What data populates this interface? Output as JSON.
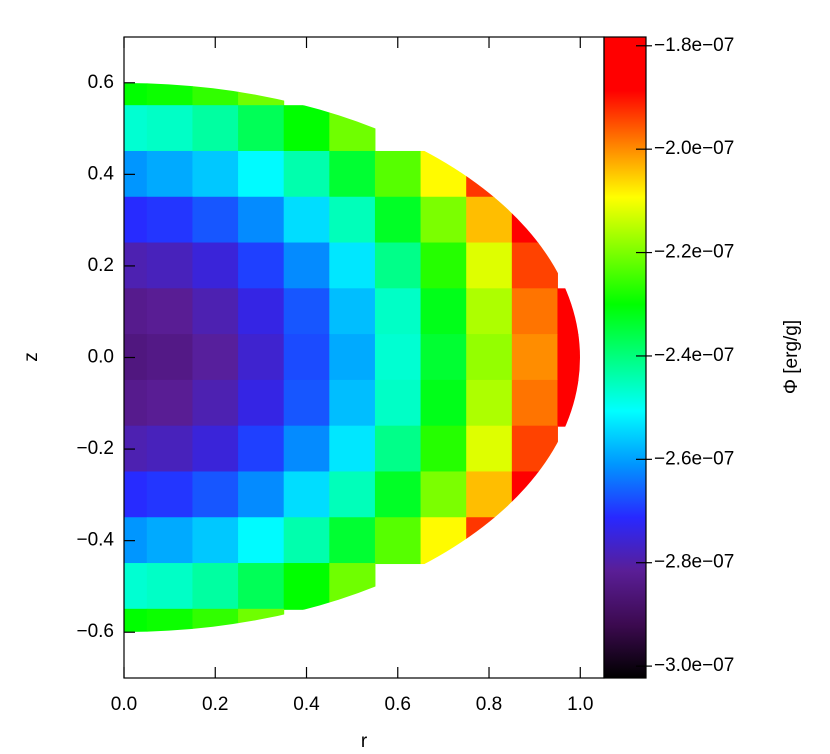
{
  "chart_data": {
    "type": "heatmap",
    "x_label": "r",
    "y_label": "z",
    "colorbar_label": "Φ [erg/g]",
    "x": [
      0,
      0.1,
      0.2,
      0.3,
      0.4,
      0.5,
      0.6,
      0.7,
      0.8,
      0.9,
      1.0
    ],
    "y": [
      0.6,
      0.5,
      0.4,
      0.3,
      0.2,
      0.1,
      0,
      -0.1,
      -0.2,
      -0.3,
      -0.4,
      -0.5,
      -0.6
    ],
    "values": [
      [
        -2.3e-07,
        -2.29e-07,
        -2.26e-07,
        -2.21e-07,
        null,
        null,
        null,
        null,
        null,
        null,
        null
      ],
      [
        -2.47e-07,
        -2.46e-07,
        -2.43e-07,
        -2.37e-07,
        -2.3e-07,
        -2.21e-07,
        null,
        null,
        null,
        null,
        null
      ],
      [
        -2.61e-07,
        -2.59e-07,
        -2.56e-07,
        -2.51e-07,
        -2.44e-07,
        -2.34e-07,
        -2.23e-07,
        -2.09e-07,
        -1.93e-07,
        null,
        null
      ],
      [
        -2.71e-07,
        -2.7e-07,
        -2.67e-07,
        -2.62e-07,
        -2.54e-07,
        -2.45e-07,
        -2.33e-07,
        -2.2e-07,
        -2.04e-07,
        -1.86e-07,
        null
      ],
      [
        -2.79e-07,
        -2.78e-07,
        -2.75e-07,
        -2.69e-07,
        -2.62e-07,
        -2.53e-07,
        -2.41e-07,
        -2.27e-07,
        -2.12e-07,
        -1.94e-07,
        null
      ],
      [
        -2.83e-07,
        -2.82e-07,
        -2.79e-07,
        -2.74e-07,
        -2.67e-07,
        -2.57e-07,
        -2.46e-07,
        -2.32e-07,
        -2.16e-07,
        -1.98e-07,
        -1.78e-07
      ],
      [
        -2.85e-07,
        -2.84e-07,
        -2.81e-07,
        -2.76e-07,
        -2.68e-07,
        -2.59e-07,
        -2.47e-07,
        -2.34e-07,
        -2.18e-07,
        -2e-07,
        -1.8e-07
      ],
      [
        -2.83e-07,
        -2.82e-07,
        -2.79e-07,
        -2.74e-07,
        -2.67e-07,
        -2.57e-07,
        -2.46e-07,
        -2.32e-07,
        -2.16e-07,
        -1.98e-07,
        -1.78e-07
      ],
      [
        -2.79e-07,
        -2.78e-07,
        -2.75e-07,
        -2.69e-07,
        -2.62e-07,
        -2.53e-07,
        -2.41e-07,
        -2.27e-07,
        -2.12e-07,
        -1.94e-07,
        null
      ],
      [
        -2.71e-07,
        -2.7e-07,
        -2.67e-07,
        -2.62e-07,
        -2.54e-07,
        -2.45e-07,
        -2.33e-07,
        -2.2e-07,
        -2.04e-07,
        -1.86e-07,
        null
      ],
      [
        -2.61e-07,
        -2.59e-07,
        -2.56e-07,
        -2.51e-07,
        -2.44e-07,
        -2.34e-07,
        -2.23e-07,
        -2.09e-07,
        -1.93e-07,
        null,
        null
      ],
      [
        -2.47e-07,
        -2.46e-07,
        -2.43e-07,
        -2.37e-07,
        -2.3e-07,
        -2.21e-07,
        null,
        null,
        null,
        null,
        null
      ],
      [
        -2.3e-07,
        -2.29e-07,
        -2.26e-07,
        -2.21e-07,
        null,
        null,
        null,
        null,
        null,
        null,
        null
      ]
    ],
    "xlim": [
      0,
      1.052
    ],
    "ylim": [
      -0.7,
      0.7
    ],
    "xticks": [
      {
        "value": 0,
        "label": "0.0"
      },
      {
        "value": 0.2,
        "label": "0.2"
      },
      {
        "value": 0.4,
        "label": "0.4"
      },
      {
        "value": 0.6,
        "label": "0.6"
      },
      {
        "value": 0.8,
        "label": "0.8"
      },
      {
        "value": 1.0,
        "label": "1.0"
      }
    ],
    "yticks": [
      {
        "value": -0.6,
        "label": "−0.6"
      },
      {
        "value": -0.4,
        "label": "−0.4"
      },
      {
        "value": -0.2,
        "label": "−0.2"
      },
      {
        "value": 0,
        "label": "0.0"
      },
      {
        "value": 0.2,
        "label": "0.2"
      },
      {
        "value": 0.4,
        "label": "0.4"
      },
      {
        "value": 0.6,
        "label": "0.6"
      }
    ],
    "zlim": [
      -3.023e-07,
      -1.783e-07
    ],
    "zticks": [
      {
        "value": -3e-07,
        "label": "−3.0e−07"
      },
      {
        "value": -2.8e-07,
        "label": "−2.8e−07"
      },
      {
        "value": -2.6e-07,
        "label": "−2.6e−07"
      },
      {
        "value": -2.4e-07,
        "label": "−2.4e−07"
      },
      {
        "value": -2.2e-07,
        "label": "−2.2e−07"
      },
      {
        "value": -2e-07,
        "label": "−2.0e−07"
      },
      {
        "value": -1.8e-07,
        "label": "−1.8e−07"
      }
    ],
    "colormap": [
      "#000000",
      "#3c0a50",
      "#5a1e96",
      "#2828ff",
      "#0096ff",
      "#00ffff",
      "#00ff80",
      "#00ff00",
      "#80ff00",
      "#ffff00",
      "#ff8000",
      "#ff0000",
      "#ff0000"
    ]
  }
}
